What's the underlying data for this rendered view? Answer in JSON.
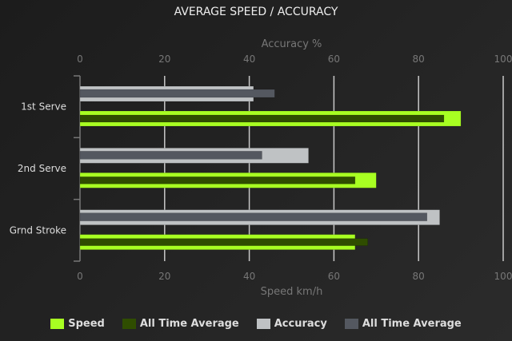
{
  "chart_data": {
    "type": "bar",
    "orientation": "horizontal",
    "title": "AVERAGE SPEED / ACCURACY",
    "categories": [
      "1st Serve",
      "2nd Serve",
      "Grnd Stroke"
    ],
    "top_axis": {
      "label": "Accuracy %",
      "range": [
        0,
        100
      ],
      "ticks": [
        0,
        20,
        40,
        60,
        80,
        100
      ]
    },
    "bottom_axis": {
      "label": "Speed km/h",
      "range": [
        0,
        100
      ],
      "ticks": [
        0,
        20,
        40,
        60,
        80,
        100
      ]
    },
    "grid": true,
    "legend_position": "bottom",
    "series": [
      {
        "name": "Speed",
        "axis": "bottom",
        "color": "#a8ff22",
        "values": [
          90,
          70,
          65
        ]
      },
      {
        "name": "All Time Average",
        "axis": "bottom",
        "color": "#2f4d00",
        "values": [
          86,
          65,
          68
        ]
      },
      {
        "name": "Accuracy",
        "axis": "top",
        "color": "#bfc2c4",
        "values": [
          41,
          54,
          85
        ]
      },
      {
        "name": "All Time Average",
        "axis": "top",
        "color": "#545860",
        "values": [
          46,
          43,
          82
        ]
      }
    ]
  }
}
